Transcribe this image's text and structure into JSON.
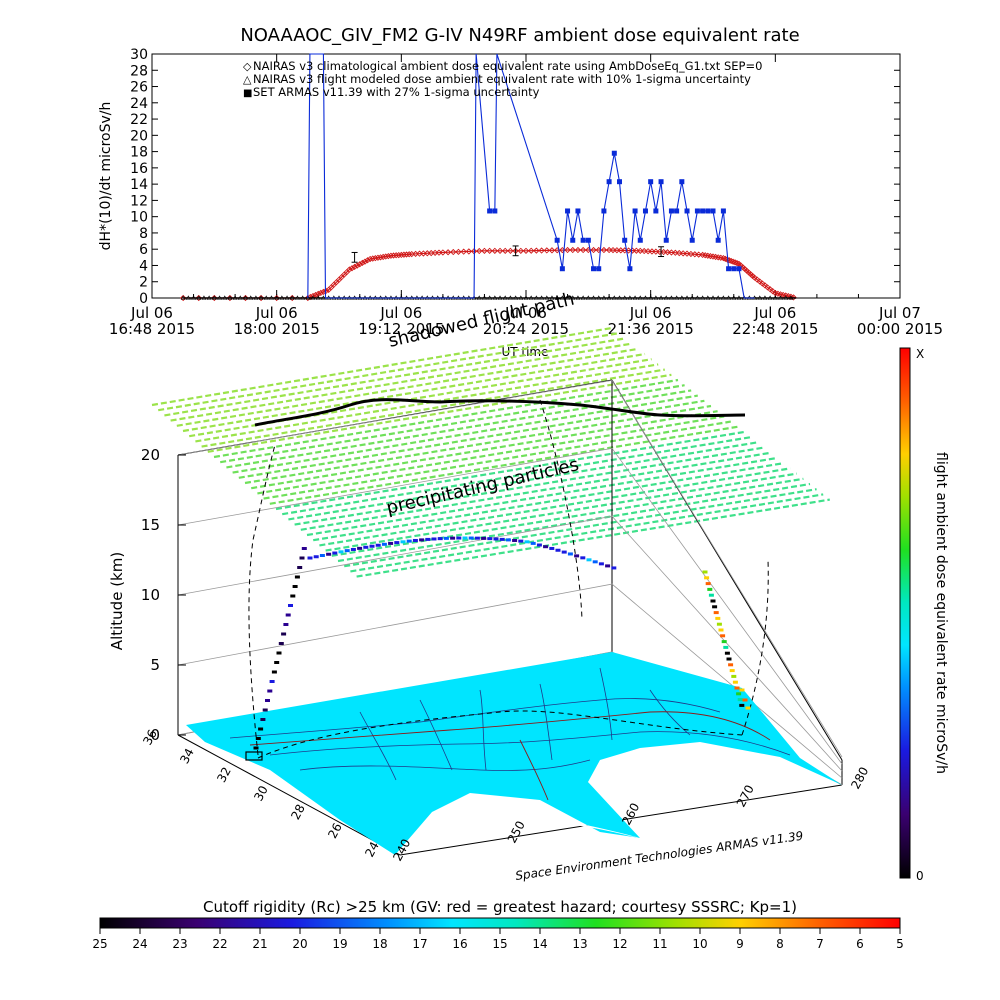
{
  "title": "NOAAAOC_GIV_FM2 G-IV    N49RF  ambient dose equivalent rate",
  "colors": {
    "nairas_clim": "#d01818",
    "nairas_flight": "#000000",
    "armas": "#0a2bd8",
    "map_fill": "#00e5ff",
    "map_lines": "#1e3a8a",
    "frame": "#000000"
  },
  "chart_data": [
    {
      "type": "line",
      "ylabel": "dH*(10)/dt microSv/h",
      "xlabel": "UT time",
      "ylim": [
        0,
        30
      ],
      "y_ticks": [
        "0",
        "2",
        "4",
        "6",
        "8",
        "10",
        "12",
        "14",
        "16",
        "18",
        "20",
        "22",
        "24",
        "26",
        "28",
        "30"
      ],
      "x_ticks": [
        {
          "l1": "Jul 06",
          "l2": "16:48 2015",
          "h": 16.8
        },
        {
          "l1": "Jul 06",
          "l2": "18:00 2015",
          "h": 18.0
        },
        {
          "l1": "Jul 06",
          "l2": "19:12 2015",
          "h": 19.2
        },
        {
          "l1": "Jul 06",
          "l2": "20:24 2015",
          "h": 20.4
        },
        {
          "l1": "Jul 06",
          "l2": "21:36 2015",
          "h": 21.6
        },
        {
          "l1": "Jul 06",
          "l2": "22:48 2015",
          "h": 22.8
        },
        {
          "l1": "Jul 07",
          "l2": "00:00 2015",
          "h": 24.0
        }
      ],
      "xlim_hours": [
        16.8,
        24.0
      ],
      "legend": [
        {
          "symbol": "◇",
          "text": "NAIRAS v3 climatological ambient dose equivalent rate using AmbDoseEq_G1.txt SEP=0"
        },
        {
          "symbol": "△",
          "text": "NAIRAS v3 flight modeled dose ambient equivalent rate with 10% 1-sigma uncertainty"
        },
        {
          "symbol": "■",
          "text": "SET ARMAS v11.39 with 27% 1-sigma uncertainty"
        }
      ],
      "series": [
        {
          "name": "NAIRAS v3 climatological ambient dose equivalent rate using AmbDoseEq_G1.txt SEP=0",
          "x": [
            17.1,
            18.3,
            18.5,
            18.7,
            18.9,
            19.1,
            19.3,
            19.6,
            20.0,
            20.4,
            20.8,
            21.2,
            21.5,
            21.8,
            22.1,
            22.3,
            22.45,
            22.6,
            22.8,
            23.0
          ],
          "y": [
            0,
            0,
            1.0,
            3.5,
            4.8,
            5.2,
            5.4,
            5.6,
            5.8,
            5.8,
            5.9,
            5.9,
            5.8,
            5.6,
            5.3,
            4.9,
            4.2,
            2.5,
            0.6,
            0
          ]
        },
        {
          "name": "NAIRAS v3 flight modeled dose ambient equivalent rate with 10% 1-sigma uncertainty",
          "x": [
            17.1,
            23.0
          ],
          "y": [
            0,
            0
          ]
        },
        {
          "name": "SET ARMAS v11.39 with 27% 1-sigma uncertainty",
          "x": [
            18.3,
            18.32,
            18.45,
            18.47,
            19.9,
            19.92,
            20.05,
            20.1,
            20.12,
            20.7,
            20.75,
            20.8,
            20.85,
            20.9,
            20.95,
            21.0,
            21.05,
            21.1,
            21.15,
            21.2,
            21.25,
            21.3,
            21.35,
            21.4,
            21.45,
            21.5,
            21.55,
            21.6,
            21.65,
            21.7,
            21.75,
            21.8,
            21.85,
            21.9,
            21.95,
            22.0,
            22.05,
            22.1,
            22.15,
            22.2,
            22.25,
            22.3,
            22.35,
            22.4,
            22.45,
            22.5,
            22.55,
            22.6
          ],
          "y": [
            0,
            30,
            30,
            0,
            0,
            30,
            10.7,
            10.7,
            30,
            7.1,
            3.6,
            10.7,
            7.1,
            10.7,
            7.1,
            7.1,
            3.6,
            3.6,
            10.7,
            14.3,
            17.8,
            14.3,
            7.1,
            3.6,
            10.7,
            7.1,
            10.7,
            14.3,
            10.7,
            14.3,
            7.1,
            10.7,
            10.7,
            14.3,
            10.7,
            7.1,
            10.7,
            10.7,
            10.7,
            10.7,
            7.1,
            10.7,
            3.6,
            3.6,
            3.6,
            0,
            0,
            0
          ]
        }
      ]
    },
    {
      "type": "scatter",
      "zlabel": "Altitude (km)",
      "z_ticks": [
        "0",
        "5",
        "10",
        "15",
        "20"
      ],
      "lat_ticks": [
        "36",
        "34",
        "32",
        "30",
        "28",
        "26",
        "24"
      ],
      "lon_ticks": [
        "240",
        "250",
        "260",
        "270",
        "280"
      ],
      "annotations": [
        "shadowed flight path",
        "precipitating particles"
      ],
      "credit": "Space Environment Technologies ARMAS v11.39",
      "colorbar_label": "flight ambient dose equivalent rate microSv/h",
      "colorbar_top": "X",
      "colorbar_bottom": "0"
    }
  ],
  "rc_bar": {
    "title": "Cutoff rigidity (Rc) >25 km (GV: red = greatest hazard; courtesy SSSRC; Kp=1)",
    "ticks": [
      "25",
      "24",
      "23",
      "22",
      "21",
      "20",
      "19",
      "18",
      "17",
      "16",
      "15",
      "14",
      "13",
      "12",
      "11",
      "10",
      "9",
      "8",
      "7",
      "6",
      "5"
    ]
  }
}
